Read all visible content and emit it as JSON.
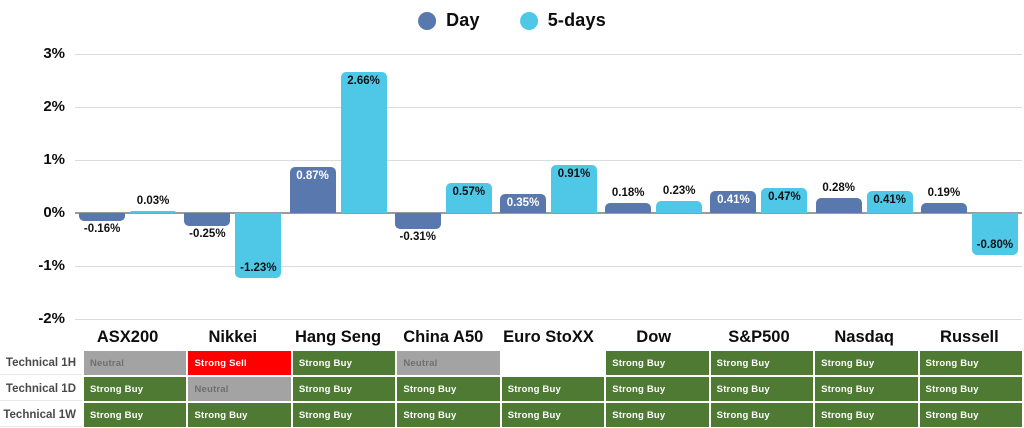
{
  "legend": [
    {
      "label": "Day",
      "color": "#5878AE"
    },
    {
      "label": "5-days",
      "color": "#4FC8E8"
    }
  ],
  "chart_data": {
    "type": "bar",
    "title": "",
    "categories": [
      "ASX200",
      "Nikkei",
      "Hang Seng",
      "China A50",
      "Euro StoXX",
      "Dow",
      "S&P500",
      "Nasdaq",
      "Russell"
    ],
    "series": [
      {
        "name": "Day",
        "color": "#5878AE",
        "values": [
          -0.16,
          -0.25,
          0.87,
          -0.31,
          0.35,
          0.18,
          0.41,
          0.28,
          0.19
        ]
      },
      {
        "name": "5-days",
        "color": "#4FC8E8",
        "values": [
          0.03,
          -1.23,
          2.66,
          0.57,
          0.91,
          0.23,
          0.47,
          0.41,
          -0.8
        ]
      }
    ],
    "value_labels": {
      "Day": [
        "-0.16%",
        "-0.25%",
        "0.87%",
        "-0.31%",
        "0.35%",
        "0.18%",
        "0.41%",
        "0.28%",
        "0.19%"
      ],
      "5-days": [
        "0.03%",
        "-1.23%",
        "2.66%",
        "0.57%",
        "0.91%",
        "0.23%",
        "0.47%",
        "0.41%",
        "-0.80%"
      ]
    },
    "xlabel": "",
    "ylabel": "",
    "ylim": [
      -2,
      3
    ],
    "yticks": [
      "3%",
      "2%",
      "1%",
      "0%",
      "-1%",
      "-2%"
    ],
    "grid": true,
    "legend_position": "top"
  },
  "table": {
    "rows": [
      {
        "label": "Technical 1H",
        "cells": [
          "Neutral",
          "Strong Sell",
          "Strong Buy",
          "Neutral",
          "",
          "Strong Buy",
          "Strong Buy",
          "Strong Buy",
          "Strong Buy"
        ]
      },
      {
        "label": "Technical 1D",
        "cells": [
          "Strong Buy",
          "Neutral",
          "Strong Buy",
          "Strong Buy",
          "Strong Buy",
          "Strong Buy",
          "Strong Buy",
          "Strong Buy",
          "Strong Buy"
        ]
      },
      {
        "label": "Technical 1W",
        "cells": [
          "Strong Buy",
          "Strong Buy",
          "Strong Buy",
          "Strong Buy",
          "Strong Buy",
          "Strong Buy",
          "Strong Buy",
          "Strong Buy",
          "Strong Buy"
        ]
      }
    ]
  },
  "colors": {
    "strong_buy_bg": "#4E7A33",
    "strong_buy_text": "#FFFFFF",
    "strong_sell_bg": "#FF0000",
    "strong_sell_text": "#FFFFFF",
    "neutral_bg": "#A3A3A3",
    "neutral_text": "#6F6F6F",
    "empty_bg": "#FFFFFF",
    "grid_line": "#DBDBDB",
    "zero_line": "#9B9B9B",
    "label_text": "#111111",
    "inside_label_on_day": "#FFFFFF",
    "inside_label_on_5days": "#111111"
  }
}
